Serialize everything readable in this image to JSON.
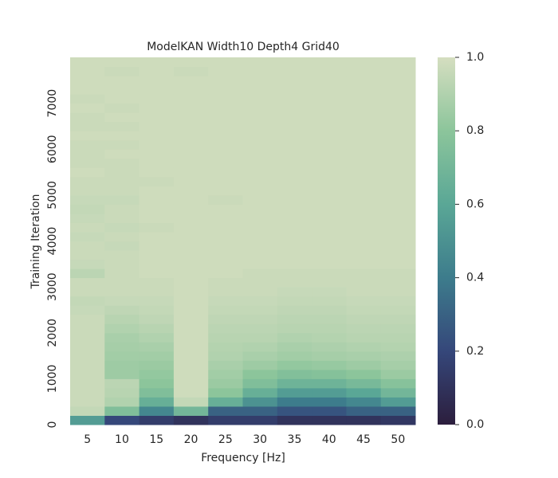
{
  "chart_data": {
    "type": "heatmap",
    "title": "ModelKAN Width10 Depth4 Grid40",
    "xlabel": "Frequency [Hz]",
    "ylabel": "Training Iteration",
    "categories": [
      "5",
      "10",
      "15",
      "20",
      "25",
      "30",
      "35",
      "40",
      "45",
      "50"
    ],
    "y": [
      0,
      200,
      400,
      600,
      800,
      1000,
      1200,
      1400,
      1600,
      1800,
      2000,
      2200,
      2400,
      2600,
      2800,
      3000,
      3200,
      3400,
      3600,
      3800,
      4000,
      4200,
      4400,
      4600,
      4800,
      5000,
      5200,
      5400,
      5600,
      5800,
      6000,
      6200,
      6400,
      6600,
      6800,
      7000,
      7200,
      7400,
      7600,
      7800
    ],
    "ylim": [
      0,
      8000
    ],
    "yticks": [
      0,
      1000,
      2000,
      3000,
      4000,
      5000,
      6000,
      7000
    ],
    "z": [
      [
        0.55,
        0.2,
        0.15,
        0.1,
        0.15,
        0.15,
        0.1,
        0.1,
        0.1,
        0.12
      ],
      [
        0.95,
        0.75,
        0.45,
        0.7,
        0.3,
        0.3,
        0.25,
        0.25,
        0.3,
        0.3
      ],
      [
        0.97,
        0.9,
        0.65,
        0.95,
        0.65,
        0.5,
        0.4,
        0.4,
        0.45,
        0.55
      ],
      [
        0.97,
        0.92,
        0.75,
        0.98,
        0.8,
        0.65,
        0.55,
        0.55,
        0.6,
        0.7
      ],
      [
        0.97,
        0.93,
        0.8,
        0.98,
        0.84,
        0.75,
        0.68,
        0.68,
        0.72,
        0.78
      ],
      [
        0.97,
        0.85,
        0.82,
        0.98,
        0.86,
        0.8,
        0.76,
        0.77,
        0.8,
        0.84
      ],
      [
        0.97,
        0.85,
        0.84,
        0.98,
        0.88,
        0.85,
        0.82,
        0.83,
        0.85,
        0.87
      ],
      [
        0.97,
        0.86,
        0.86,
        0.98,
        0.9,
        0.88,
        0.86,
        0.87,
        0.88,
        0.89
      ],
      [
        0.97,
        0.87,
        0.88,
        0.98,
        0.91,
        0.9,
        0.88,
        0.89,
        0.9,
        0.91
      ],
      [
        0.97,
        0.88,
        0.9,
        0.98,
        0.92,
        0.92,
        0.9,
        0.91,
        0.92,
        0.92
      ],
      [
        0.97,
        0.9,
        0.92,
        0.98,
        0.93,
        0.93,
        0.92,
        0.92,
        0.93,
        0.93
      ],
      [
        0.97,
        0.92,
        0.94,
        0.98,
        0.94,
        0.94,
        0.93,
        0.93,
        0.94,
        0.94
      ],
      [
        0.96,
        0.94,
        0.95,
        0.98,
        0.95,
        0.95,
        0.94,
        0.94,
        0.95,
        0.95
      ],
      [
        0.95,
        0.96,
        0.96,
        0.98,
        0.96,
        0.96,
        0.95,
        0.95,
        0.96,
        0.96
      ],
      [
        0.97,
        0.97,
        0.97,
        0.98,
        0.97,
        0.97,
        0.96,
        0.96,
        0.97,
        0.97
      ],
      [
        0.97,
        0.97,
        0.97,
        0.98,
        0.97,
        0.97,
        0.97,
        0.97,
        0.97,
        0.97
      ],
      [
        0.93,
        0.97,
        0.98,
        0.98,
        0.98,
        0.97,
        0.97,
        0.97,
        0.97,
        0.97
      ],
      [
        0.96,
        0.97,
        0.98,
        0.98,
        0.98,
        0.98,
        0.98,
        0.98,
        0.98,
        0.98
      ],
      [
        0.97,
        0.97,
        0.98,
        0.98,
        0.98,
        0.98,
        0.98,
        0.98,
        0.98,
        0.98
      ],
      [
        0.97,
        0.96,
        0.98,
        0.98,
        0.98,
        0.98,
        0.98,
        0.98,
        0.98,
        0.98
      ],
      [
        0.96,
        0.97,
        0.98,
        0.98,
        0.98,
        0.98,
        0.98,
        0.98,
        0.98,
        0.98
      ],
      [
        0.97,
        0.96,
        0.97,
        0.98,
        0.98,
        0.98,
        0.98,
        0.98,
        0.98,
        0.98
      ],
      [
        0.96,
        0.97,
        0.98,
        0.98,
        0.98,
        0.98,
        0.98,
        0.98,
        0.98,
        0.98
      ],
      [
        0.95,
        0.97,
        0.98,
        0.98,
        0.98,
        0.98,
        0.98,
        0.98,
        0.98,
        0.98
      ],
      [
        0.96,
        0.96,
        0.98,
        0.98,
        0.97,
        0.98,
        0.98,
        0.98,
        0.98,
        0.98
      ],
      [
        0.97,
        0.97,
        0.98,
        0.98,
        0.98,
        0.98,
        0.98,
        0.98,
        0.98,
        0.98
      ],
      [
        0.97,
        0.97,
        0.97,
        0.98,
        0.98,
        0.98,
        0.98,
        0.98,
        0.98,
        0.98
      ],
      [
        0.98,
        0.97,
        0.98,
        0.98,
        0.98,
        0.98,
        0.98,
        0.98,
        0.98,
        0.98
      ],
      [
        0.97,
        0.97,
        0.98,
        0.98,
        0.98,
        0.98,
        0.98,
        0.98,
        0.98,
        0.98
      ],
      [
        0.97,
        0.98,
        0.98,
        0.98,
        0.98,
        0.98,
        0.98,
        0.98,
        0.98,
        0.98
      ],
      [
        0.97,
        0.97,
        0.98,
        0.98,
        0.98,
        0.98,
        0.98,
        0.98,
        0.98,
        0.98
      ],
      [
        0.98,
        0.98,
        0.98,
        0.98,
        0.98,
        0.98,
        0.98,
        0.98,
        0.98,
        0.98
      ],
      [
        0.97,
        0.97,
        0.98,
        0.98,
        0.98,
        0.98,
        0.98,
        0.98,
        0.98,
        0.98
      ],
      [
        0.97,
        0.98,
        0.98,
        0.98,
        0.98,
        0.98,
        0.98,
        0.98,
        0.98,
        0.98
      ],
      [
        0.98,
        0.97,
        0.98,
        0.98,
        0.98,
        0.98,
        0.98,
        0.98,
        0.98,
        0.98
      ],
      [
        0.97,
        0.98,
        0.98,
        0.98,
        0.98,
        0.98,
        0.98,
        0.98,
        0.98,
        0.98
      ],
      [
        0.98,
        0.98,
        0.98,
        0.98,
        0.98,
        0.98,
        0.98,
        0.98,
        0.98,
        0.98
      ],
      [
        0.98,
        0.98,
        0.98,
        0.98,
        0.98,
        0.98,
        0.98,
        0.98,
        0.98,
        0.98
      ],
      [
        0.98,
        0.97,
        0.98,
        0.97,
        0.98,
        0.98,
        0.98,
        0.98,
        0.98,
        0.98
      ],
      [
        0.98,
        0.98,
        0.98,
        0.98,
        0.98,
        0.98,
        0.98,
        0.98,
        0.98,
        0.98
      ]
    ],
    "clim": [
      0,
      1
    ],
    "cticks": [
      {
        "value": 0,
        "label": "0.0"
      },
      {
        "value": 0.2,
        "label": "0.2"
      },
      {
        "value": 0.4,
        "label": "0.4"
      },
      {
        "value": 0.6,
        "label": "0.6"
      },
      {
        "value": 0.8,
        "label": "0.8"
      },
      {
        "value": 1,
        "label": "1.0"
      }
    ],
    "colormap": [
      "#2c1e3d",
      "#35477a",
      "#3d7c8c",
      "#5aa796",
      "#8cc59b",
      "#d5dec0"
    ]
  }
}
